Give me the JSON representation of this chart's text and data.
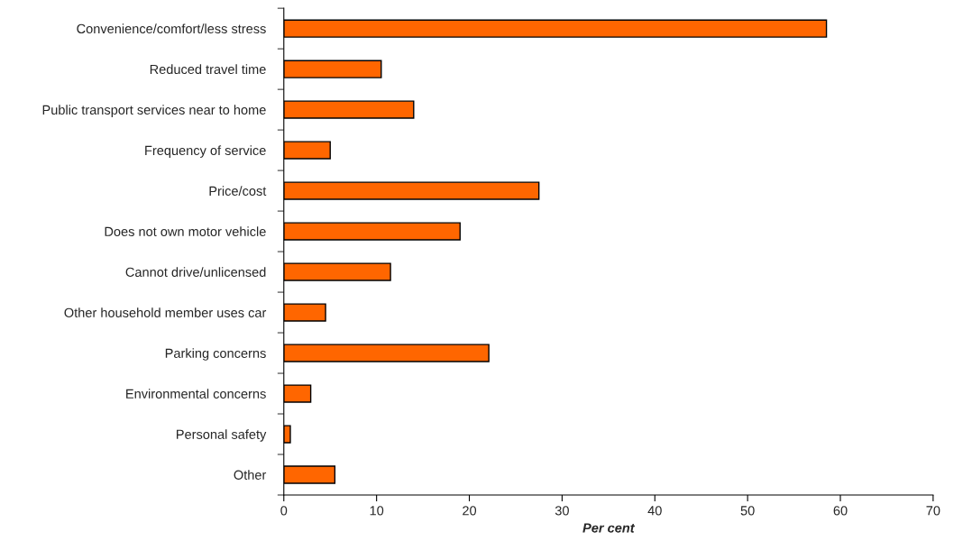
{
  "chart_data": {
    "type": "bar",
    "orientation": "horizontal",
    "xlabel": "Per cent",
    "categories": [
      "Convenience/comfort/less stress",
      "Reduced travel time",
      "Public transport services near to home",
      "Frequency of service",
      "Price/cost",
      "Does not own motor vehicle",
      "Cannot drive/unlicensed",
      "Other household member uses car",
      "Parking concerns",
      "Environmental concerns",
      "Personal safety",
      "Other"
    ],
    "values": [
      58.5,
      10.5,
      14.0,
      5.0,
      27.5,
      19.0,
      11.5,
      4.5,
      22.1,
      2.9,
      0.7,
      5.5
    ],
    "color": "#ff6600",
    "xlim": [
      0,
      70
    ],
    "xticks": [
      0,
      10,
      20,
      30,
      40,
      50,
      60,
      70
    ],
    "grid": false,
    "legend": false
  }
}
